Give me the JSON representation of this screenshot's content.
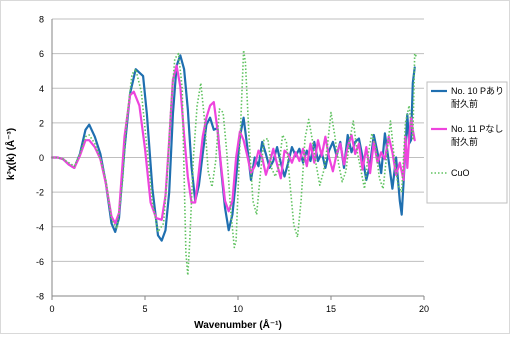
{
  "chart_data": {
    "type": "line",
    "xlabel": "Wavenumber (Å⁻¹)",
    "ylabel": "k³χ(k) (Å⁻³)",
    "xlim": [
      0,
      20
    ],
    "ylim": [
      -8,
      8
    ],
    "xticks": [
      0,
      5,
      10,
      15,
      20
    ],
    "yticks": [
      -8,
      -6,
      -4,
      -2,
      0,
      2,
      4,
      6,
      8
    ],
    "grid": "horizontal",
    "legend_position": "right",
    "series": [
      {
        "name": "No. 10 Pあり 耐久前",
        "color": "#1f6fb0",
        "style": "solid",
        "width": 2.2,
        "points": [
          [
            0,
            0
          ],
          [
            0.3,
            0
          ],
          [
            0.6,
            -0.1
          ],
          [
            0.9,
            -0.4
          ],
          [
            1.2,
            -0.6
          ],
          [
            1.5,
            0.2
          ],
          [
            1.8,
            1.6
          ],
          [
            2.0,
            1.9
          ],
          [
            2.3,
            1.2
          ],
          [
            2.6,
            0.2
          ],
          [
            2.9,
            -1.5
          ],
          [
            3.2,
            -3.8
          ],
          [
            3.4,
            -4.3
          ],
          [
            3.6,
            -3.5
          ],
          [
            3.9,
            0.5
          ],
          [
            4.2,
            3.7
          ],
          [
            4.5,
            5.1
          ],
          [
            4.9,
            4.7
          ],
          [
            5.1,
            2.5
          ],
          [
            5.4,
            -1.8
          ],
          [
            5.7,
            -4.5
          ],
          [
            5.9,
            -4.8
          ],
          [
            6.1,
            -4.2
          ],
          [
            6.3,
            -2.0
          ],
          [
            6.5,
            2.5
          ],
          [
            6.7,
            5.3
          ],
          [
            6.9,
            5.9
          ],
          [
            7.1,
            5.1
          ],
          [
            7.3,
            2.8
          ],
          [
            7.5,
            -0.5
          ],
          [
            7.7,
            -2.5
          ],
          [
            7.9,
            -1.6
          ],
          [
            8.1,
            0.2
          ],
          [
            8.3,
            1.9
          ],
          [
            8.5,
            2.3
          ],
          [
            8.7,
            1.6
          ],
          [
            8.9,
            1.7
          ],
          [
            9.1,
            -0.8
          ],
          [
            9.3,
            -2.9
          ],
          [
            9.5,
            -4.2
          ],
          [
            9.7,
            -3.3
          ],
          [
            9.9,
            -1.2
          ],
          [
            10.1,
            1.2
          ],
          [
            10.3,
            2.3
          ],
          [
            10.5,
            0.6
          ],
          [
            10.7,
            -1.3
          ],
          [
            10.9,
            0.0
          ],
          [
            11.1,
            -0.5
          ],
          [
            11.3,
            0.9
          ],
          [
            11.5,
            0.2
          ],
          [
            11.7,
            -0.6
          ],
          [
            11.9,
            -0.2
          ],
          [
            12.1,
            0.6
          ],
          [
            12.3,
            -0.3
          ],
          [
            12.5,
            -1.1
          ],
          [
            12.7,
            -0.3
          ],
          [
            12.9,
            0.6
          ],
          [
            13.1,
            0.1
          ],
          [
            13.3,
            0.5
          ],
          [
            13.5,
            -0.3
          ],
          [
            13.7,
            0.4
          ],
          [
            13.9,
            -0.2
          ],
          [
            14.1,
            0.9
          ],
          [
            14.3,
            -0.2
          ],
          [
            14.5,
            0.3
          ],
          [
            14.7,
            -0.6
          ],
          [
            14.9,
            0.4
          ],
          [
            15.1,
            0.9
          ],
          [
            15.3,
            0.1
          ],
          [
            15.5,
            0.9
          ],
          [
            15.7,
            -0.6
          ],
          [
            15.9,
            1.3
          ],
          [
            16.1,
            0.3
          ],
          [
            16.3,
            0.9
          ],
          [
            16.5,
            1.1
          ],
          [
            16.7,
            0.0
          ],
          [
            16.9,
            -1.3
          ],
          [
            17.1,
            -0.4
          ],
          [
            17.3,
            1.3
          ],
          [
            17.5,
            0.3
          ],
          [
            17.7,
            -0.9
          ],
          [
            17.9,
            1.4
          ],
          [
            18.1,
            -0.2
          ],
          [
            18.3,
            -1.8
          ],
          [
            18.5,
            0.0
          ],
          [
            18.7,
            -2.5
          ],
          [
            18.8,
            -3.3
          ],
          [
            18.9,
            -1.5
          ],
          [
            19.0,
            0.5
          ],
          [
            19.1,
            2.5
          ],
          [
            19.2,
            0.8
          ],
          [
            19.3,
            1.0
          ],
          [
            19.4,
            4.3
          ],
          [
            19.5,
            5.2
          ]
        ]
      },
      {
        "name": "No. 11 Pなし 耐久前",
        "color": "#ee44dd",
        "style": "solid",
        "width": 2.2,
        "points": [
          [
            0,
            0
          ],
          [
            0.3,
            0
          ],
          [
            0.6,
            -0.1
          ],
          [
            0.9,
            -0.4
          ],
          [
            1.2,
            -0.6
          ],
          [
            1.5,
            0.1
          ],
          [
            1.8,
            1.0
          ],
          [
            2.0,
            1.0
          ],
          [
            2.3,
            0.6
          ],
          [
            2.6,
            -0.1
          ],
          [
            2.9,
            -1.5
          ],
          [
            3.2,
            -3.4
          ],
          [
            3.4,
            -3.8
          ],
          [
            3.6,
            -3.2
          ],
          [
            3.9,
            1.2
          ],
          [
            4.2,
            3.6
          ],
          [
            4.4,
            3.8
          ],
          [
            4.7,
            3.0
          ],
          [
            5.0,
            0.5
          ],
          [
            5.3,
            -2.6
          ],
          [
            5.6,
            -3.5
          ],
          [
            5.9,
            -3.6
          ],
          [
            6.1,
            -2.2
          ],
          [
            6.3,
            1.0
          ],
          [
            6.5,
            4.5
          ],
          [
            6.7,
            5.3
          ],
          [
            6.9,
            4.1
          ],
          [
            7.1,
            1.3
          ],
          [
            7.3,
            -1.1
          ],
          [
            7.5,
            -2.6
          ],
          [
            7.7,
            -2.6
          ],
          [
            7.9,
            -0.8
          ],
          [
            8.1,
            1.2
          ],
          [
            8.3,
            2.3
          ],
          [
            8.5,
            3.0
          ],
          [
            8.7,
            3.2
          ],
          [
            8.9,
            1.6
          ],
          [
            9.1,
            -0.6
          ],
          [
            9.3,
            -2.5
          ],
          [
            9.5,
            -3.1
          ],
          [
            9.7,
            -2.5
          ],
          [
            9.9,
            0.0
          ],
          [
            10.1,
            1.5
          ],
          [
            10.3,
            1.0
          ],
          [
            10.5,
            0.1
          ],
          [
            10.7,
            -0.9
          ],
          [
            10.9,
            -0.5
          ],
          [
            11.1,
            0.4
          ],
          [
            11.3,
            0.0
          ],
          [
            11.5,
            -1.0
          ],
          [
            11.7,
            -0.3
          ],
          [
            11.9,
            0.5
          ],
          [
            12.1,
            -0.4
          ],
          [
            12.3,
            -1.2
          ],
          [
            12.5,
            0.4
          ],
          [
            12.7,
            0.2
          ],
          [
            12.9,
            -0.3
          ],
          [
            13.1,
            0.3
          ],
          [
            13.3,
            -0.2
          ],
          [
            13.5,
            0.5
          ],
          [
            13.7,
            -0.5
          ],
          [
            13.9,
            0.8
          ],
          [
            14.1,
            -0.3
          ],
          [
            14.3,
            1.0
          ],
          [
            14.5,
            0.1
          ],
          [
            14.7,
            1.2
          ],
          [
            14.9,
            0.0
          ],
          [
            15.1,
            -0.8
          ],
          [
            15.3,
            0.2
          ],
          [
            15.5,
            0.8
          ],
          [
            15.7,
            -0.4
          ],
          [
            15.9,
            0.6
          ],
          [
            16.1,
            1.3
          ],
          [
            16.3,
            0.2
          ],
          [
            16.5,
            0.8
          ],
          [
            16.7,
            -0.7
          ],
          [
            16.9,
            0.6
          ],
          [
            17.1,
            -0.9
          ],
          [
            17.3,
            0.9
          ],
          [
            17.5,
            -0.3
          ],
          [
            17.7,
            0.3
          ],
          [
            17.9,
            -0.1
          ],
          [
            18.1,
            1.2
          ],
          [
            18.3,
            0.3
          ],
          [
            18.5,
            -1.0
          ],
          [
            18.7,
            -0.3
          ],
          [
            18.9,
            -1.3
          ],
          [
            19.0,
            1.2
          ],
          [
            19.1,
            -0.6
          ],
          [
            19.2,
            1.1
          ],
          [
            19.3,
            2.3
          ],
          [
            19.4,
            1.6
          ],
          [
            19.5,
            1.0
          ]
        ]
      },
      {
        "name": "CuO",
        "color": "#5fc25f",
        "style": "dotted",
        "width": 1.6,
        "points": [
          [
            0,
            0
          ],
          [
            0.3,
            0
          ],
          [
            0.6,
            -0.1
          ],
          [
            0.9,
            -0.3
          ],
          [
            1.2,
            -0.5
          ],
          [
            1.5,
            0.2
          ],
          [
            1.8,
            1.2
          ],
          [
            2.0,
            1.3
          ],
          [
            2.3,
            0.8
          ],
          [
            2.6,
            -0.1
          ],
          [
            2.9,
            -1.3
          ],
          [
            3.2,
            -3.6
          ],
          [
            3.5,
            -4.1
          ],
          [
            3.8,
            -1.3
          ],
          [
            4.0,
            2.0
          ],
          [
            4.3,
            4.8
          ],
          [
            4.5,
            5.1
          ],
          [
            4.8,
            3.8
          ],
          [
            5.1,
            0.6
          ],
          [
            5.4,
            -2.6
          ],
          [
            5.7,
            -4.3
          ],
          [
            6.0,
            -3.8
          ],
          [
            6.2,
            -1.0
          ],
          [
            6.4,
            3.0
          ],
          [
            6.6,
            5.7
          ],
          [
            6.8,
            6.0
          ],
          [
            7.0,
            4.0
          ],
          [
            7.1,
            -1.0
          ],
          [
            7.2,
            -5.5
          ],
          [
            7.3,
            -6.8
          ],
          [
            7.4,
            -5.0
          ],
          [
            7.6,
            0.0
          ],
          [
            7.8,
            3.0
          ],
          [
            8.0,
            4.3
          ],
          [
            8.2,
            2.2
          ],
          [
            8.4,
            -0.8
          ],
          [
            8.6,
            -1.7
          ],
          [
            8.8,
            -0.2
          ],
          [
            9.0,
            2.8
          ],
          [
            9.2,
            2.6
          ],
          [
            9.4,
            0.3
          ],
          [
            9.6,
            -3.0
          ],
          [
            9.8,
            -5.2
          ],
          [
            9.9,
            -4.8
          ],
          [
            10.1,
            0.8
          ],
          [
            10.3,
            6.2
          ],
          [
            10.4,
            5.5
          ],
          [
            10.6,
            1.0
          ],
          [
            10.8,
            -2.5
          ],
          [
            11.0,
            -3.3
          ],
          [
            11.2,
            -1.0
          ],
          [
            11.4,
            1.0
          ],
          [
            11.6,
            1.1
          ],
          [
            11.8,
            -0.6
          ],
          [
            12.0,
            -1.1
          ],
          [
            12.2,
            -0.5
          ],
          [
            12.4,
            1.3
          ],
          [
            12.6,
            0.9
          ],
          [
            12.8,
            -1.6
          ],
          [
            13.0,
            -3.9
          ],
          [
            13.2,
            -4.6
          ],
          [
            13.4,
            -2.4
          ],
          [
            13.6,
            1.1
          ],
          [
            13.8,
            2.2
          ],
          [
            14.0,
            1.0
          ],
          [
            14.2,
            -0.4
          ],
          [
            14.4,
            -1.6
          ],
          [
            14.6,
            -0.8
          ],
          [
            14.8,
            0.6
          ],
          [
            15.0,
            2.6
          ],
          [
            15.2,
            1.3
          ],
          [
            15.4,
            -0.3
          ],
          [
            15.6,
            -1.4
          ],
          [
            15.8,
            -0.8
          ],
          [
            16.0,
            1.0
          ],
          [
            16.2,
            2.1
          ],
          [
            16.4,
            0.4
          ],
          [
            16.6,
            -0.7
          ],
          [
            16.8,
            -1.8
          ],
          [
            17.0,
            0.2
          ],
          [
            17.2,
            1.4
          ],
          [
            17.4,
            0.6
          ],
          [
            17.6,
            -1.2
          ],
          [
            17.8,
            -1.8
          ],
          [
            18.0,
            0.2
          ],
          [
            18.2,
            2.1
          ],
          [
            18.4,
            0.0
          ],
          [
            18.6,
            -1.6
          ],
          [
            18.8,
            -2.0
          ],
          [
            19.0,
            2.0
          ],
          [
            19.2,
            3.0
          ],
          [
            19.4,
            1.0
          ],
          [
            19.5,
            6.0
          ],
          [
            19.6,
            5.8
          ]
        ]
      }
    ]
  }
}
